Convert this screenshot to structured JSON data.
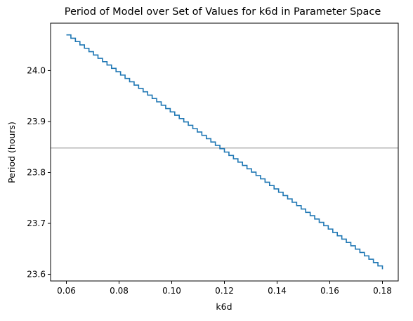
{
  "chart_data": {
    "type": "line",
    "title": "Period of Model over Set of Values for k6d in Parameter Space",
    "xlabel": "k6d",
    "ylabel": "Period (hours)",
    "xlim": [
      0.054,
      0.186
    ],
    "ylim": [
      23.587,
      24.093
    ],
    "x_ticks": [
      0.06,
      0.08,
      0.1,
      0.12,
      0.14,
      0.16,
      0.18
    ],
    "x_tick_labels": [
      "0.06",
      "0.08",
      "0.10",
      "0.12",
      "0.14",
      "0.16",
      "0.18"
    ],
    "y_ticks": [
      23.6,
      23.7,
      23.8,
      23.9,
      24.0
    ],
    "y_tick_labels": [
      "23.6",
      "23.7",
      "23.8",
      "23.9",
      "24.0"
    ],
    "grid": false,
    "legend": "none",
    "series": [
      {
        "color": "#1f77b4",
        "x_start": 0.06,
        "x_end": 0.18,
        "y_start": 24.07,
        "y_end": 23.61,
        "step_count": 70,
        "style": "staircase line"
      }
    ],
    "reference_lines": [
      {
        "orientation": "horizontal",
        "y": 23.848,
        "color": "#a9a9a9"
      }
    ]
  }
}
